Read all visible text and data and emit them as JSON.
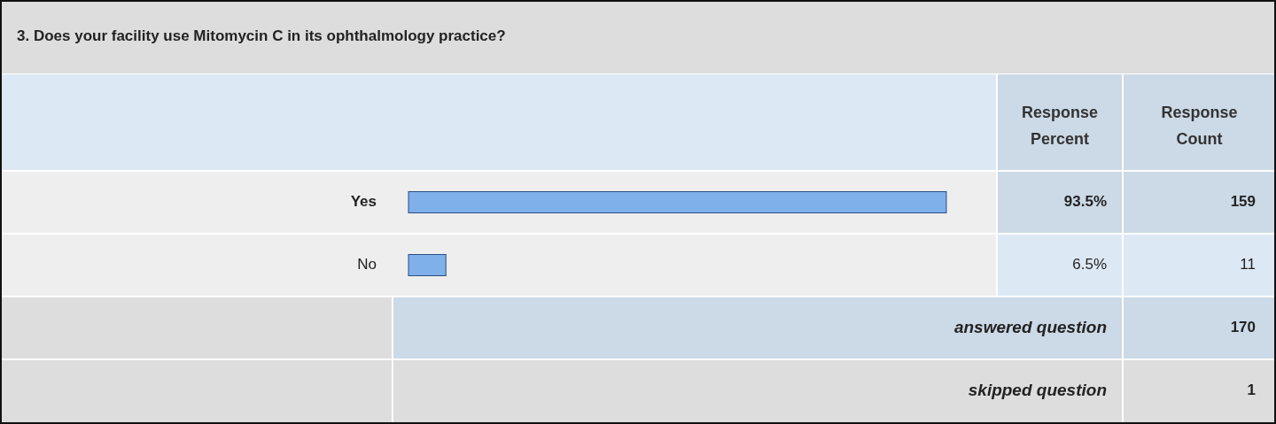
{
  "chart_data": {
    "type": "bar",
    "orientation": "horizontal",
    "title": "3. Does your facility use Mitomycin C in its ophthalmology practice?",
    "categories": [
      "Yes",
      "No"
    ],
    "values": [
      93.5,
      6.5
    ],
    "color": "#7fb0ea",
    "value_labels": [
      "93.5%",
      "6.5%"
    ],
    "annotations": [
      "Response Percent",
      "Response Count",
      "159",
      "11",
      "answered question",
      "170",
      "skipped question",
      "1"
    ]
  }
}
